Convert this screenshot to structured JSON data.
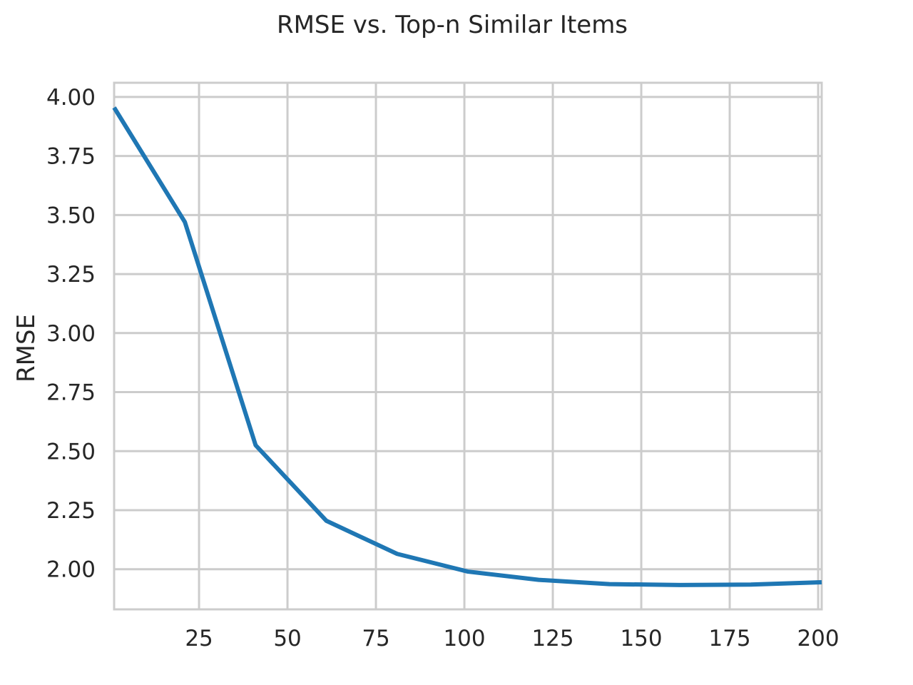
{
  "chart_data": {
    "type": "line",
    "title": "RMSE vs. Top-n Similar Items",
    "xlabel": "",
    "ylabel": "RMSE",
    "xlim": [
      1,
      201
    ],
    "ylim": [
      1.83,
      4.06
    ],
    "grid": true,
    "x_ticks": [
      25,
      50,
      75,
      100,
      125,
      150,
      175,
      200
    ],
    "x_tick_labels": [
      "25",
      "50",
      "75",
      "100",
      "125",
      "150",
      "175",
      "200"
    ],
    "y_ticks": [
      2.0,
      2.25,
      2.5,
      2.75,
      3.0,
      3.25,
      3.5,
      3.75,
      4.0
    ],
    "y_tick_labels": [
      "2.00",
      "2.25",
      "2.50",
      "2.75",
      "3.00",
      "3.25",
      "3.50",
      "3.75",
      "4.00"
    ],
    "series": [
      {
        "color": "#1f77b4",
        "x": [
          1,
          21,
          41,
          61,
          81,
          101,
          121,
          141,
          161,
          181,
          201
        ],
        "y": [
          3.955,
          3.47,
          2.525,
          2.205,
          2.065,
          1.99,
          1.955,
          1.937,
          1.933,
          1.935,
          1.945
        ]
      }
    ]
  }
}
